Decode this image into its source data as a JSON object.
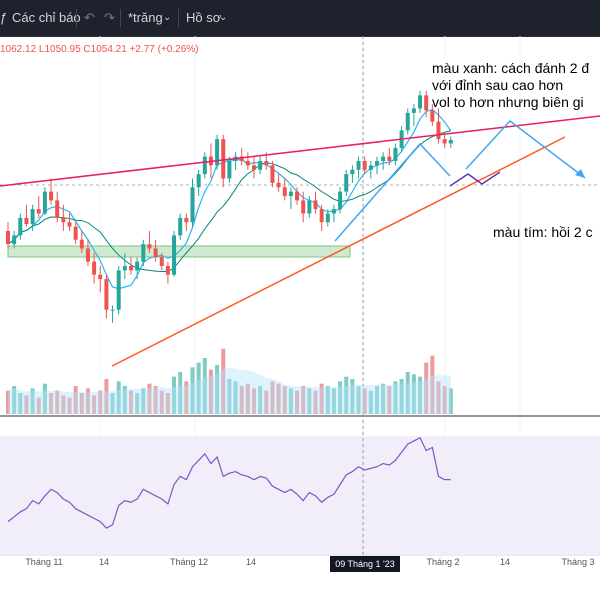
{
  "toolbar": {
    "indicators_label": "Các chỉ báo",
    "template_label": "*trăng",
    "profile_label": "Hồ sơ"
  },
  "legend": {
    "ohlc_text": "1062.12 L1050.95 C1054.21 +2.77 (+0.26%)"
  },
  "annotations": {
    "blue_note_line1": "màu xanh: cách đánh 2 đ",
    "blue_note_line2": "với đỉnh sau cao hơn",
    "blue_note_line3": "vol to hơn nhưng biên gi",
    "purple_note": "màu tím: hồi 2 c"
  },
  "x_axis": {
    "labels": [
      "Tháng 11",
      "14",
      "Tháng 12",
      "14",
      "09 Tháng 1 '23",
      "Tháng 2",
      "14",
      "Tháng 3"
    ]
  },
  "colors": {
    "bull": "#26a69a",
    "bear": "#ef5350",
    "ma_fast": "#29b6f6",
    "ma_slow": "#00897b",
    "trend_top": "#e91e63",
    "trend_bottom": "#ff5722",
    "support_zone": "#c8e6c9",
    "rsi": "#7e57c2",
    "toolbar_bg": "#1e222d"
  },
  "chart_data": {
    "type": "candlestick",
    "candles_ohlc": [
      [
        1000,
        1010,
        980,
        985
      ],
      [
        985,
        1000,
        980,
        995
      ],
      [
        995,
        1020,
        990,
        1015
      ],
      [
        1015,
        1030,
        1005,
        1008
      ],
      [
        1008,
        1030,
        1000,
        1025
      ],
      [
        1025,
        1040,
        1015,
        1020
      ],
      [
        1020,
        1050,
        1018,
        1045
      ],
      [
        1045,
        1060,
        1030,
        1035
      ],
      [
        1035,
        1045,
        1010,
        1015
      ],
      [
        1015,
        1030,
        1000,
        1010
      ],
      [
        1010,
        1020,
        1000,
        1005
      ],
      [
        1005,
        1010,
        985,
        990
      ],
      [
        990,
        1000,
        975,
        980
      ],
      [
        980,
        990,
        960,
        965
      ],
      [
        965,
        975,
        940,
        950
      ],
      [
        950,
        960,
        930,
        945
      ],
      [
        945,
        950,
        900,
        910
      ],
      [
        910,
        915,
        895,
        910
      ],
      [
        910,
        960,
        905,
        955
      ],
      [
        955,
        975,
        945,
        960
      ],
      [
        960,
        970,
        950,
        955
      ],
      [
        955,
        970,
        945,
        965
      ],
      [
        965,
        990,
        960,
        985
      ],
      [
        985,
        1000,
        975,
        980
      ],
      [
        980,
        990,
        965,
        970
      ],
      [
        970,
        975,
        955,
        960
      ],
      [
        960,
        965,
        940,
        950
      ],
      [
        950,
        1000,
        948,
        995
      ],
      [
        995,
        1020,
        990,
        1015
      ],
      [
        1015,
        1020,
        1000,
        1010
      ],
      [
        1010,
        1060,
        1005,
        1050
      ],
      [
        1050,
        1070,
        1040,
        1065
      ],
      [
        1065,
        1090,
        1060,
        1085
      ],
      [
        1085,
        1100,
        1060,
        1075
      ],
      [
        1075,
        1110,
        1070,
        1105
      ],
      [
        1105,
        1110,
        1050,
        1060
      ],
      [
        1060,
        1085,
        1055,
        1080
      ],
      [
        1080,
        1090,
        1070,
        1085
      ],
      [
        1085,
        1095,
        1075,
        1080
      ],
      [
        1080,
        1090,
        1070,
        1075
      ],
      [
        1075,
        1085,
        1060,
        1070
      ],
      [
        1070,
        1085,
        1065,
        1080
      ],
      [
        1080,
        1090,
        1070,
        1075
      ],
      [
        1075,
        1080,
        1050,
        1055
      ],
      [
        1055,
        1065,
        1045,
        1050
      ],
      [
        1050,
        1060,
        1035,
        1040
      ],
      [
        1040,
        1050,
        1025,
        1045
      ],
      [
        1045,
        1050,
        1030,
        1035
      ],
      [
        1035,
        1045,
        1010,
        1020
      ],
      [
        1020,
        1040,
        1015,
        1035
      ],
      [
        1035,
        1045,
        1020,
        1025
      ],
      [
        1025,
        1030,
        1000,
        1010
      ],
      [
        1010,
        1025,
        1005,
        1020
      ],
      [
        1020,
        1030,
        1010,
        1025
      ],
      [
        1025,
        1050,
        1020,
        1045
      ],
      [
        1045,
        1070,
        1040,
        1065
      ],
      [
        1065,
        1075,
        1055,
        1070
      ],
      [
        1070,
        1085,
        1060,
        1080
      ],
      [
        1080,
        1085,
        1065,
        1070
      ],
      [
        1070,
        1080,
        1060,
        1075
      ],
      [
        1075,
        1085,
        1065,
        1080
      ],
      [
        1080,
        1090,
        1070,
        1085
      ],
      [
        1085,
        1095,
        1075,
        1080
      ],
      [
        1080,
        1100,
        1075,
        1095
      ],
      [
        1095,
        1120,
        1090,
        1115
      ],
      [
        1115,
        1140,
        1110,
        1135
      ],
      [
        1135,
        1145,
        1120,
        1140
      ],
      [
        1140,
        1160,
        1135,
        1155
      ],
      [
        1155,
        1160,
        1130,
        1138
      ],
      [
        1138,
        1145,
        1120,
        1125
      ],
      [
        1125,
        1140,
        1100,
        1105
      ],
      [
        1105,
        1110,
        1095,
        1100
      ],
      [
        1100,
        1108,
        1095,
        1104
      ]
    ],
    "volume": [
      10,
      12,
      9,
      8,
      11,
      7,
      13,
      9,
      10,
      8,
      7,
      12,
      9,
      11,
      8,
      10,
      15,
      9,
      14,
      12,
      10,
      9,
      11,
      13,
      12,
      10,
      9,
      16,
      18,
      14,
      20,
      22,
      24,
      19,
      21,
      28,
      15,
      14,
      12,
      13,
      11,
      12,
      10,
      14,
      13,
      12,
      11,
      10,
      12,
      11,
      10,
      13,
      12,
      11,
      14,
      16,
      15,
      12,
      11,
      10,
      12,
      13,
      12,
      14,
      15,
      18,
      17,
      16,
      22,
      25,
      14,
      12,
      11
    ],
    "rsi": [
      32,
      35,
      38,
      40,
      45,
      43,
      48,
      52,
      50,
      46,
      44,
      40,
      38,
      36,
      34,
      32,
      28,
      30,
      42,
      45,
      44,
      46,
      52,
      50,
      48,
      46,
      43,
      55,
      60,
      58,
      66,
      70,
      74,
      68,
      72,
      60,
      62,
      63,
      61,
      60,
      58,
      60,
      59,
      54,
      52,
      50,
      52,
      49,
      45,
      50,
      48,
      44,
      47,
      49,
      55,
      61,
      63,
      66,
      64,
      65,
      66,
      68,
      67,
      70,
      75,
      80,
      82,
      84,
      76,
      78,
      60,
      58,
      58
    ]
  }
}
